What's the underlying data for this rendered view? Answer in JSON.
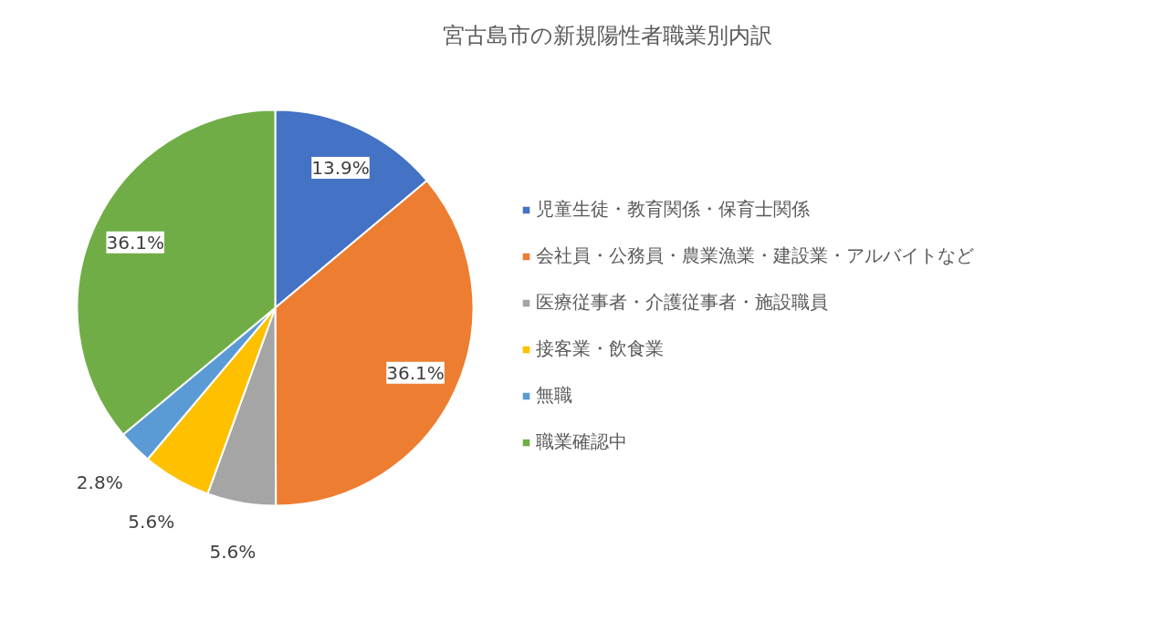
{
  "chart_data": {
    "type": "pie",
    "title": "宮古島市の新規陽性者職業別内訳",
    "categories": [
      "児童生徒・教育関係・保育士関係",
      "会社員・公務員・農業漁業・建設業・アルバイトなど",
      "医療従事者・介護従事者・施設職員",
      "接客業・飲食業",
      "無職",
      "職業確認中"
    ],
    "values": [
      13.9,
      36.1,
      5.6,
      5.6,
      2.8,
      36.1
    ],
    "value_labels": [
      "13.9%",
      "36.1%",
      "5.6%",
      "5.6%",
      "2.8%",
      "36.1%"
    ],
    "colors": [
      "#4472c4",
      "#ed7d31",
      "#a5a5a5",
      "#ffc000",
      "#5b9bd5",
      "#70ad47"
    ],
    "legend": "right"
  }
}
